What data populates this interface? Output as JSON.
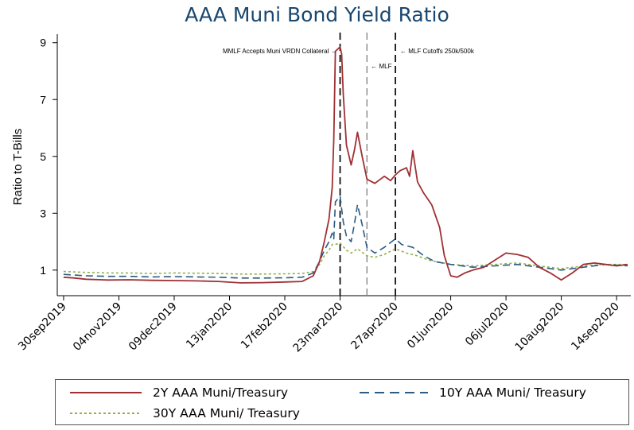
{
  "chart_data": {
    "type": "line",
    "title": "AAA Muni Bond Yield Ratio",
    "xlabel": "",
    "ylabel": "Ratio to T-Bills",
    "ylim": [
      0.1,
      9.3
    ],
    "xlim": [
      "2019-09-26",
      "2020-09-23"
    ],
    "yticks": [
      1,
      3,
      5,
      7,
      9
    ],
    "xticks": [
      "30sep2019",
      "04nov2019",
      "09dec2019",
      "13jan2020",
      "17feb2020",
      "23mar2020",
      "27apr2020",
      "01jun2020",
      "06jul2020",
      "10aug2020",
      "14sep2020"
    ],
    "grid": false,
    "legend_position": "bottom",
    "annotations": [
      {
        "date": "2020-03-23",
        "label": "MMLF Accepts Muni VRDN Collateral →",
        "style": "dashed-black"
      },
      {
        "date": "2020-04-09",
        "label": "← MLF",
        "style": "dashed-gray"
      },
      {
        "date": "2020-04-27",
        "label": "← MLF Cutoffs 250k/500k",
        "style": "dashed-black"
      }
    ],
    "series": [
      {
        "name": "2Y AAA Muni/Treasury",
        "color": "#a03034",
        "dash": "solid",
        "points": [
          [
            "2019-09-30",
            0.75
          ],
          [
            "2019-10-07",
            0.72
          ],
          [
            "2019-10-14",
            0.68
          ],
          [
            "2019-10-28",
            0.65
          ],
          [
            "2019-11-11",
            0.66
          ],
          [
            "2019-11-25",
            0.64
          ],
          [
            "2019-12-09",
            0.63
          ],
          [
            "2019-12-23",
            0.62
          ],
          [
            "2020-01-06",
            0.6
          ],
          [
            "2020-01-20",
            0.55
          ],
          [
            "2020-02-03",
            0.56
          ],
          [
            "2020-02-17",
            0.58
          ],
          [
            "2020-02-28",
            0.6
          ],
          [
            "2020-03-06",
            0.8
          ],
          [
            "2020-03-10",
            1.3
          ],
          [
            "2020-03-13",
            2.0
          ],
          [
            "2020-03-16",
            2.8
          ],
          [
            "2020-03-18",
            3.9
          ],
          [
            "2020-03-19",
            5.6
          ],
          [
            "2020-03-20",
            8.7
          ],
          [
            "2020-03-23",
            8.85
          ],
          [
            "2020-03-24",
            8.6
          ],
          [
            "2020-03-25",
            7.2
          ],
          [
            "2020-03-27",
            5.4
          ],
          [
            "2020-03-30",
            4.7
          ],
          [
            "2020-04-01",
            5.2
          ],
          [
            "2020-04-03",
            5.85
          ],
          [
            "2020-04-06",
            5.0
          ],
          [
            "2020-04-09",
            4.2
          ],
          [
            "2020-04-14",
            4.05
          ],
          [
            "2020-04-20",
            4.3
          ],
          [
            "2020-04-24",
            4.15
          ],
          [
            "2020-04-27",
            4.35
          ],
          [
            "2020-04-30",
            4.5
          ],
          [
            "2020-05-04",
            4.6
          ],
          [
            "2020-05-06",
            4.3
          ],
          [
            "2020-05-08",
            5.2
          ],
          [
            "2020-05-11",
            4.1
          ],
          [
            "2020-05-15",
            3.7
          ],
          [
            "2020-05-20",
            3.3
          ],
          [
            "2020-05-25",
            2.5
          ],
          [
            "2020-05-28",
            1.5
          ],
          [
            "2020-06-01",
            0.8
          ],
          [
            "2020-06-05",
            0.75
          ],
          [
            "2020-06-10",
            0.9
          ],
          [
            "2020-06-15",
            1.0
          ],
          [
            "2020-06-22",
            1.1
          ],
          [
            "2020-06-29",
            1.35
          ],
          [
            "2020-07-06",
            1.6
          ],
          [
            "2020-07-13",
            1.55
          ],
          [
            "2020-07-20",
            1.45
          ],
          [
            "2020-07-27",
            1.1
          ],
          [
            "2020-08-03",
            0.9
          ],
          [
            "2020-08-10",
            0.65
          ],
          [
            "2020-08-17",
            0.9
          ],
          [
            "2020-08-24",
            1.2
          ],
          [
            "2020-08-31",
            1.25
          ],
          [
            "2020-09-07",
            1.2
          ],
          [
            "2020-09-14",
            1.15
          ],
          [
            "2020-09-21",
            1.2
          ]
        ]
      },
      {
        "name": "10Y AAA Muni/ Treasury",
        "color": "#2c5b84",
        "dash": "dashed",
        "points": [
          [
            "2019-09-30",
            0.85
          ],
          [
            "2019-10-14",
            0.8
          ],
          [
            "2019-10-28",
            0.78
          ],
          [
            "2019-11-11",
            0.78
          ],
          [
            "2019-11-25",
            0.76
          ],
          [
            "2019-12-09",
            0.77
          ],
          [
            "2019-12-23",
            0.76
          ],
          [
            "2020-01-06",
            0.75
          ],
          [
            "2020-01-20",
            0.72
          ],
          [
            "2020-02-03",
            0.72
          ],
          [
            "2020-02-17",
            0.73
          ],
          [
            "2020-02-28",
            0.75
          ],
          [
            "2020-03-06",
            0.9
          ],
          [
            "2020-03-10",
            1.3
          ],
          [
            "2020-03-13",
            1.7
          ],
          [
            "2020-03-16",
            2.0
          ],
          [
            "2020-03-18",
            2.3
          ],
          [
            "2020-03-19",
            2.1
          ],
          [
            "2020-03-20",
            3.4
          ],
          [
            "2020-03-23",
            3.6
          ],
          [
            "2020-03-25",
            2.7
          ],
          [
            "2020-03-27",
            2.2
          ],
          [
            "2020-03-30",
            2.0
          ],
          [
            "2020-04-01",
            2.6
          ],
          [
            "2020-04-03",
            3.3
          ],
          [
            "2020-04-06",
            2.6
          ],
          [
            "2020-04-09",
            1.8
          ],
          [
            "2020-04-14",
            1.6
          ],
          [
            "2020-04-20",
            1.8
          ],
          [
            "2020-04-27",
            2.1
          ],
          [
            "2020-05-01",
            1.9
          ],
          [
            "2020-05-08",
            1.8
          ],
          [
            "2020-05-15",
            1.5
          ],
          [
            "2020-05-22",
            1.3
          ],
          [
            "2020-06-01",
            1.2
          ],
          [
            "2020-06-15",
            1.1
          ],
          [
            "2020-06-29",
            1.15
          ],
          [
            "2020-07-13",
            1.2
          ],
          [
            "2020-07-27",
            1.1
          ],
          [
            "2020-08-10",
            1.0
          ],
          [
            "2020-08-24",
            1.1
          ],
          [
            "2020-09-07",
            1.2
          ],
          [
            "2020-09-21",
            1.15
          ]
        ]
      },
      {
        "name": "30Y AAA Muni/ Treasury",
        "color": "#8fb247",
        "dash": "dotted",
        "points": [
          [
            "2019-09-30",
            0.95
          ],
          [
            "2019-10-14",
            0.92
          ],
          [
            "2019-10-28",
            0.9
          ],
          [
            "2019-11-11",
            0.9
          ],
          [
            "2019-11-25",
            0.88
          ],
          [
            "2019-12-09",
            0.9
          ],
          [
            "2019-12-23",
            0.89
          ],
          [
            "2020-01-06",
            0.88
          ],
          [
            "2020-01-20",
            0.86
          ],
          [
            "2020-02-03",
            0.86
          ],
          [
            "2020-02-17",
            0.87
          ],
          [
            "2020-02-28",
            0.88
          ],
          [
            "2020-03-06",
            0.95
          ],
          [
            "2020-03-10",
            1.2
          ],
          [
            "2020-03-13",
            1.5
          ],
          [
            "2020-03-16",
            1.7
          ],
          [
            "2020-03-18",
            1.9
          ],
          [
            "2020-03-20",
            1.9
          ],
          [
            "2020-03-23",
            1.95
          ],
          [
            "2020-03-27",
            1.7
          ],
          [
            "2020-03-30",
            1.6
          ],
          [
            "2020-04-03",
            1.75
          ],
          [
            "2020-04-09",
            1.5
          ],
          [
            "2020-04-14",
            1.45
          ],
          [
            "2020-04-20",
            1.55
          ],
          [
            "2020-04-27",
            1.75
          ],
          [
            "2020-05-04",
            1.6
          ],
          [
            "2020-05-11",
            1.5
          ],
          [
            "2020-05-18",
            1.35
          ],
          [
            "2020-06-01",
            1.2
          ],
          [
            "2020-06-15",
            1.15
          ],
          [
            "2020-06-29",
            1.2
          ],
          [
            "2020-07-13",
            1.25
          ],
          [
            "2020-07-27",
            1.15
          ],
          [
            "2020-08-10",
            1.05
          ],
          [
            "2020-08-24",
            1.15
          ],
          [
            "2020-09-07",
            1.2
          ],
          [
            "2020-09-21",
            1.2
          ]
        ]
      }
    ]
  }
}
